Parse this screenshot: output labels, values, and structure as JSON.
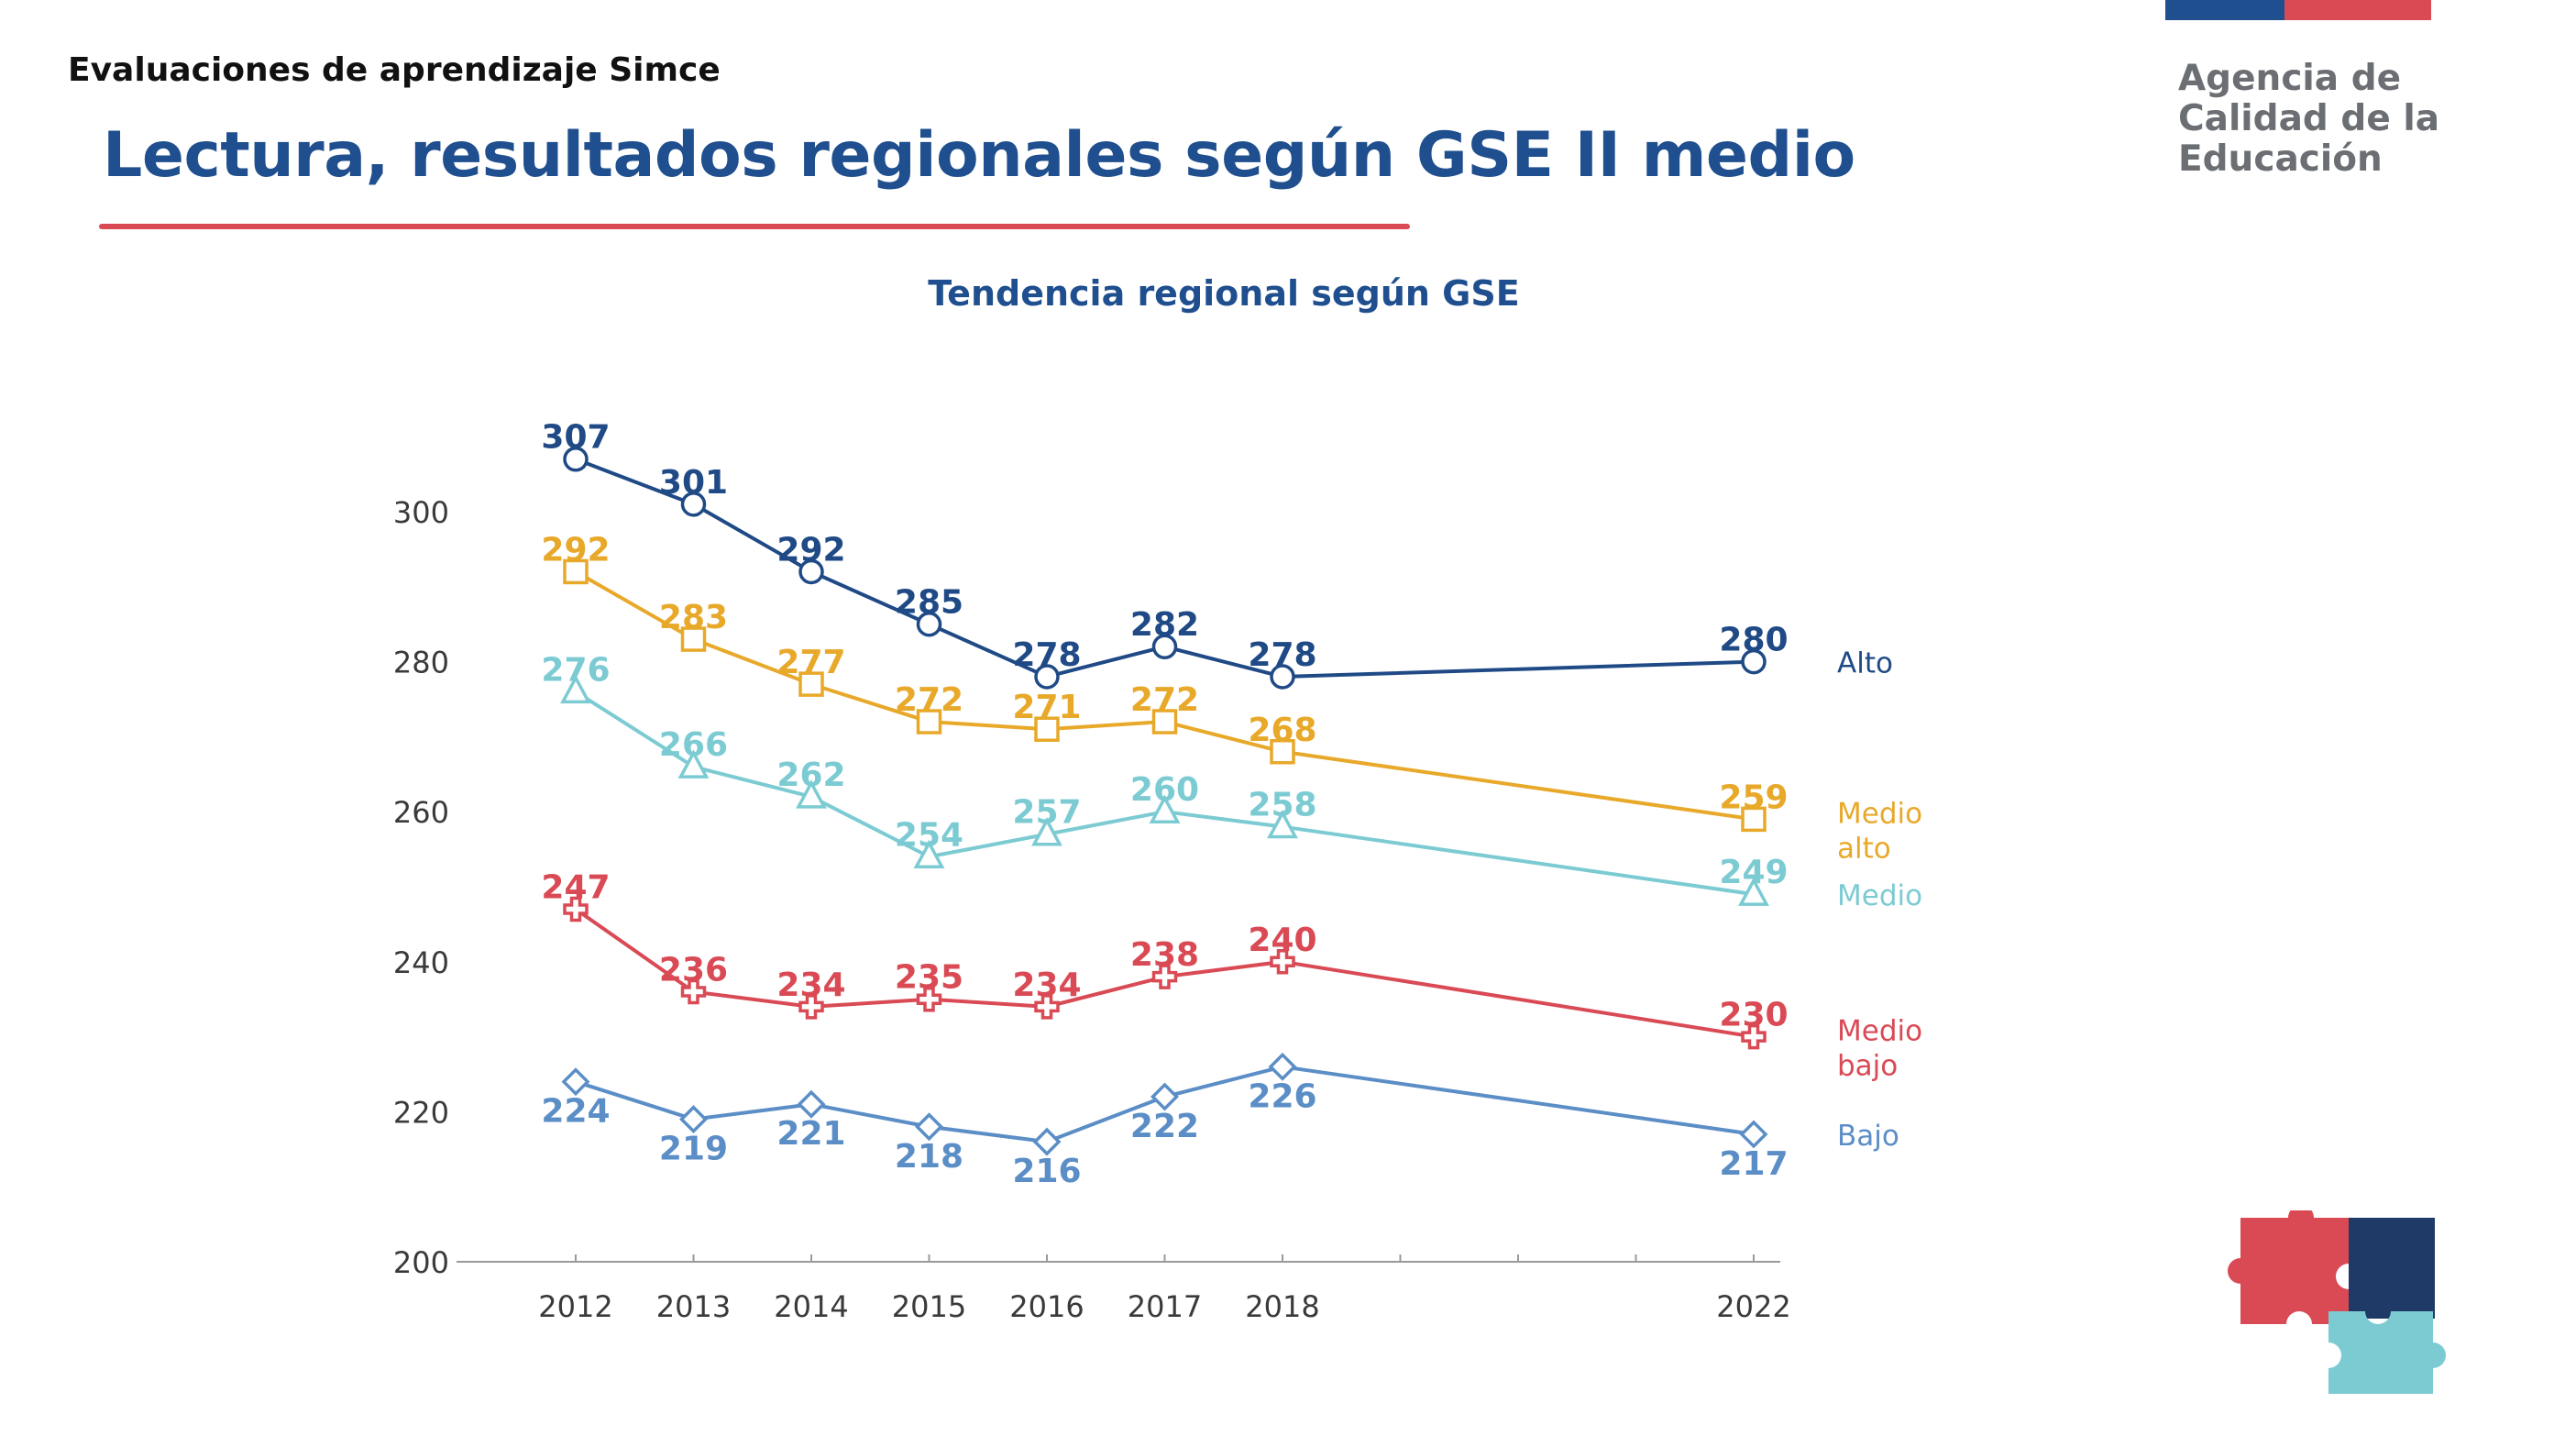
{
  "header": {
    "kicker": "Evaluaciones de aprendizaje Simce",
    "title": "Lectura, resultados regionales según GSE II medio"
  },
  "brand": {
    "lines": [
      "Agencia de",
      "Calidad de la",
      "Educación"
    ],
    "colors": {
      "blue": "#1f4f8e",
      "red": "#d94a55",
      "gray": "#6b6f73"
    }
  },
  "chart_data": {
    "type": "line",
    "title": "Tendencia regional según GSE",
    "xlabel": "",
    "ylabel": "",
    "x": [
      2012,
      2013,
      2014,
      2015,
      2016,
      2017,
      2018,
      2022
    ],
    "x_ticks": [
      "2012",
      "2013",
      "2014",
      "2015",
      "2016",
      "2017",
      "2018",
      "2022"
    ],
    "ylim": [
      200,
      307
    ],
    "y_ticks": [
      200,
      220,
      240,
      260,
      280,
      300
    ],
    "grid": false,
    "legend": "right (labels at end of lines)",
    "series": [
      {
        "name": "Alto",
        "label_lines": [
          "Alto"
        ],
        "color": "#1f4a86",
        "marker": "circle",
        "values": [
          307,
          301,
          292,
          285,
          278,
          282,
          278,
          280
        ],
        "label_pos": "above"
      },
      {
        "name": "Medio alto",
        "label_lines": [
          "Medio",
          "alto"
        ],
        "color": "#e8a92a",
        "marker": "square",
        "values": [
          292,
          283,
          277,
          272,
          271,
          272,
          268,
          259
        ],
        "label_pos": "above"
      },
      {
        "name": "Medio",
        "label_lines": [
          "Medio"
        ],
        "color": "#7ccbd3",
        "marker": "triangle",
        "values": [
          276,
          266,
          262,
          254,
          257,
          260,
          258,
          249
        ],
        "label_pos": "above"
      },
      {
        "name": "Medio bajo",
        "label_lines": [
          "Medio",
          "bajo"
        ],
        "color": "#d94a55",
        "marker": "plus",
        "values": [
          247,
          236,
          234,
          235,
          234,
          238,
          240,
          230
        ],
        "label_pos": "above"
      },
      {
        "name": "Bajo",
        "label_lines": [
          "Bajo"
        ],
        "color": "#5b8ec6",
        "marker": "diamond",
        "values": [
          224,
          219,
          221,
          218,
          216,
          222,
          226,
          217
        ],
        "label_pos": "below"
      }
    ]
  }
}
